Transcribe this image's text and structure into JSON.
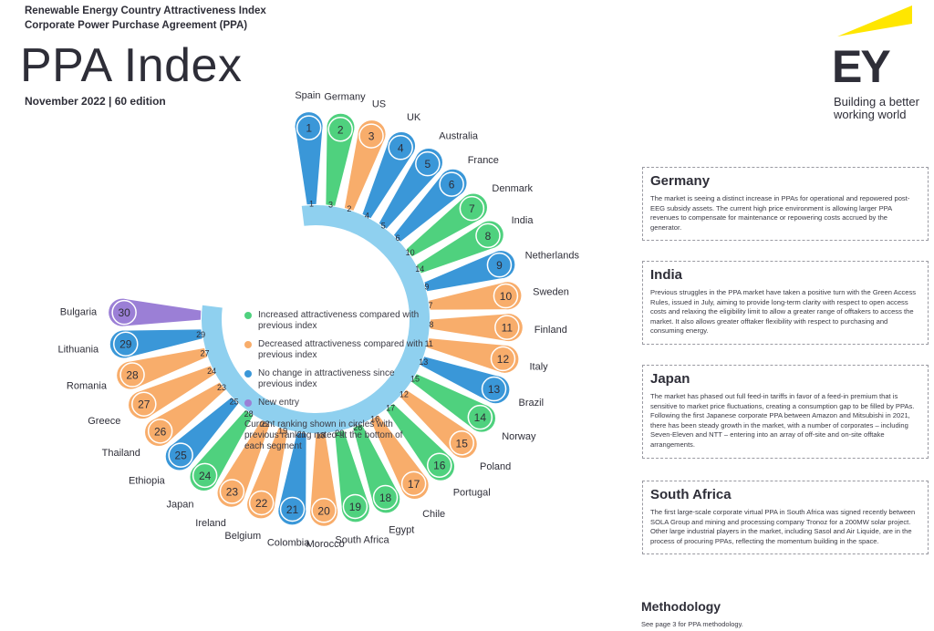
{
  "header": {
    "line1": "Renewable Energy Country Attractiveness Index",
    "line2": "Corporate Power Purchase Agreement (PPA)",
    "title": "PPA Index",
    "edition": "November 2022 | 60 edition"
  },
  "logo": {
    "mark": "EY",
    "tagline_1": "Building a better",
    "tagline_2": "working world",
    "yellow": "#ffe600"
  },
  "colors": {
    "increased": "#4fd17e",
    "decreased": "#f8ad6b",
    "no_change": "#3a97d8",
    "new_entry": "#9b7fd6",
    "ring": "#8fd0ef"
  },
  "legend": {
    "items": [
      {
        "status": "increased",
        "label": "Increased attractiveness compared with previous index"
      },
      {
        "status": "decreased",
        "label": "Decreased attractiveness compared with previous index"
      },
      {
        "status": "no_change",
        "label": "No change in attractiveness since previous index"
      },
      {
        "status": "new_entry",
        "label": "New entry"
      }
    ],
    "note": "Current ranking shown in circles with previous ranking noted at the bottom of each segment"
  },
  "chart_data": {
    "type": "radial-ranking",
    "series": [
      {
        "country": "Spain",
        "rank": 1,
        "previous": 1,
        "status": "no_change"
      },
      {
        "country": "Germany",
        "rank": 2,
        "previous": 3,
        "status": "increased"
      },
      {
        "country": "US",
        "rank": 3,
        "previous": 2,
        "status": "decreased"
      },
      {
        "country": "UK",
        "rank": 4,
        "previous": 4,
        "status": "no_change"
      },
      {
        "country": "Australia",
        "rank": 5,
        "previous": 5,
        "status": "no_change"
      },
      {
        "country": "France",
        "rank": 6,
        "previous": 6,
        "status": "no_change"
      },
      {
        "country": "Denmark",
        "rank": 7,
        "previous": 10,
        "status": "increased"
      },
      {
        "country": "India",
        "rank": 8,
        "previous": 14,
        "status": "increased"
      },
      {
        "country": "Netherlands",
        "rank": 9,
        "previous": 9,
        "status": "no_change"
      },
      {
        "country": "Sweden",
        "rank": 10,
        "previous": 7,
        "status": "decreased"
      },
      {
        "country": "Finland",
        "rank": 11,
        "previous": 8,
        "status": "decreased"
      },
      {
        "country": "Italy",
        "rank": 12,
        "previous": 11,
        "status": "decreased"
      },
      {
        "country": "Brazil",
        "rank": 13,
        "previous": 13,
        "status": "no_change"
      },
      {
        "country": "Norway",
        "rank": 14,
        "previous": 15,
        "status": "increased"
      },
      {
        "country": "Poland",
        "rank": 15,
        "previous": 12,
        "status": "decreased"
      },
      {
        "country": "Portugal",
        "rank": 16,
        "previous": 17,
        "status": "increased"
      },
      {
        "country": "Chile",
        "rank": 17,
        "previous": 16,
        "status": "decreased"
      },
      {
        "country": "Egypt",
        "rank": 18,
        "previous": 26,
        "status": "increased"
      },
      {
        "country": "South Africa",
        "rank": 19,
        "previous": 20,
        "status": "increased"
      },
      {
        "country": "Morocco",
        "rank": 20,
        "previous": 18,
        "status": "decreased"
      },
      {
        "country": "Colombia",
        "rank": 21,
        "previous": 21,
        "status": "no_change"
      },
      {
        "country": "Belgium",
        "rank": 22,
        "previous": 19,
        "status": "decreased"
      },
      {
        "country": "Ireland",
        "rank": 23,
        "previous": 22,
        "status": "decreased"
      },
      {
        "country": "Japan",
        "rank": 24,
        "previous": 28,
        "status": "increased"
      },
      {
        "country": "Ethiopia",
        "rank": 25,
        "previous": 25,
        "status": "no_change"
      },
      {
        "country": "Thailand",
        "rank": 26,
        "previous": 23,
        "status": "decreased"
      },
      {
        "country": "Greece",
        "rank": 27,
        "previous": 24,
        "status": "decreased"
      },
      {
        "country": "Romania",
        "rank": 28,
        "previous": 27,
        "status": "decreased"
      },
      {
        "country": "Lithuania",
        "rank": 29,
        "previous": 29,
        "status": "no_change"
      },
      {
        "country": "Bulgaria",
        "rank": 30,
        "previous": null,
        "status": "new_entry"
      }
    ]
  },
  "notes": [
    {
      "title": "Germany",
      "text": "The market is seeing a distinct increase in PPAs for operational and repowered post-EEG subsidy assets. The current high price environment is allowing larger PPA revenues to compensate for maintenance or repowering costs accrued by the generator."
    },
    {
      "title": "India",
      "text": "Previous struggles in the PPA market have taken a positive turn with the Green Access Rules, issued in July, aiming to provide long-term clarity with respect to open access costs and relaxing the eligibility limit to allow a greater range of offtakers to access the market. It also allows greater offtaker flexibility with respect to purchasing and consuming energy."
    },
    {
      "title": "Japan",
      "text": "The market has phased out full feed-in tariffs in favor of a feed-in premium that is sensitive to market price fluctuations, creating a consumption gap to be filled by PPAs. Following the first Japanese corporate PPA between Amazon and Mitsubishi in 2021, there has been steady growth in the market, with a number of corporates – including Seven-Eleven and NTT – entering into an array of off-site and on-site offtake arrangements."
    },
    {
      "title": "South Africa",
      "text": "The first large-scale corporate virtual PPA in South Africa was signed recently between SOLA Group and mining and processing company Tronoz for a 200MW solar project. Other large industrial players in the market, including Sasol and Air Liquide, are in the process of procuring PPAs, reflecting the momentum building in the space."
    }
  ],
  "methodology": {
    "title": "Methodology",
    "text": "See page 3 for PPA methodology."
  }
}
